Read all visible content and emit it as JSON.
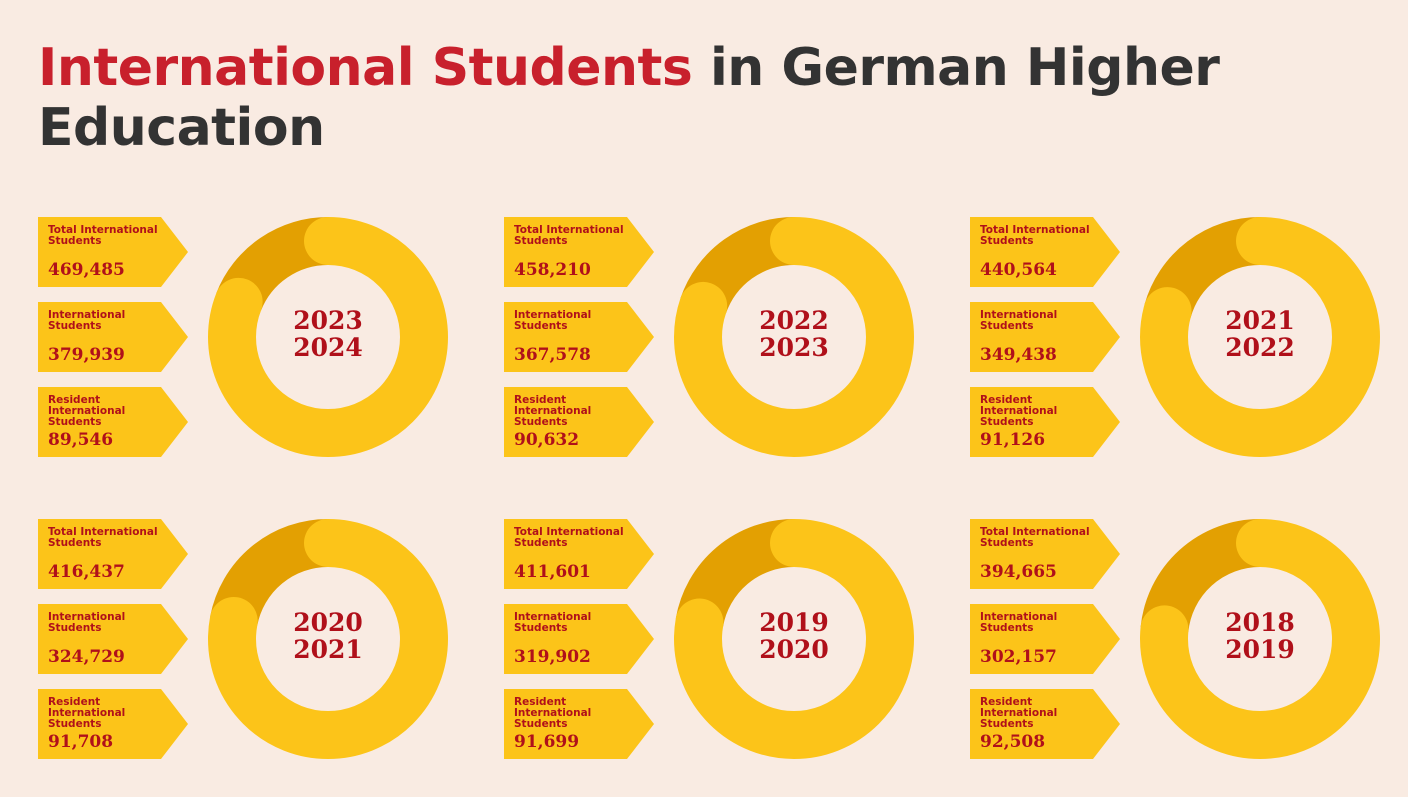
{
  "title": {
    "highlight": "International Students",
    "rest": " in German Higher Education"
  },
  "colors": {
    "ring_major": "#fcc419",
    "ring_minor": "#e3a002",
    "accent": "#c8202c",
    "text_dark": "#333333",
    "background": "#f9ebe2"
  },
  "labels": {
    "total": "Total International Students",
    "international": "International Students",
    "resident": "Resident International Students"
  },
  "chart_data": {
    "type": "pie",
    "categories": [
      "International Students",
      "Resident International Students"
    ],
    "panels": [
      {
        "year_top": "2023",
        "year_bottom": "2024",
        "total": "469,485",
        "international": "379,939",
        "resident": "89,546",
        "values": [
          379939,
          89546
        ]
      },
      {
        "year_top": "2022",
        "year_bottom": "2023",
        "total": "458,210",
        "international": "367,578",
        "resident": "90,632",
        "values": [
          367578,
          90632
        ]
      },
      {
        "year_top": "2021",
        "year_bottom": "2022",
        "total": "440,564",
        "international": "349,438",
        "resident": "91,126",
        "values": [
          349438,
          91126
        ]
      },
      {
        "year_top": "2020",
        "year_bottom": "2021",
        "total": "416,437",
        "international": "324,729",
        "resident": "91,708",
        "values": [
          324729,
          91708
        ]
      },
      {
        "year_top": "2019",
        "year_bottom": "2020",
        "total": "411,601",
        "international": "319,902",
        "resident": "91,699",
        "values": [
          319902,
          91699
        ]
      },
      {
        "year_top": "2018",
        "year_bottom": "2019",
        "total": "394,665",
        "international": "302,157",
        "resident": "92,508",
        "values": [
          302157,
          92508
        ]
      }
    ]
  }
}
